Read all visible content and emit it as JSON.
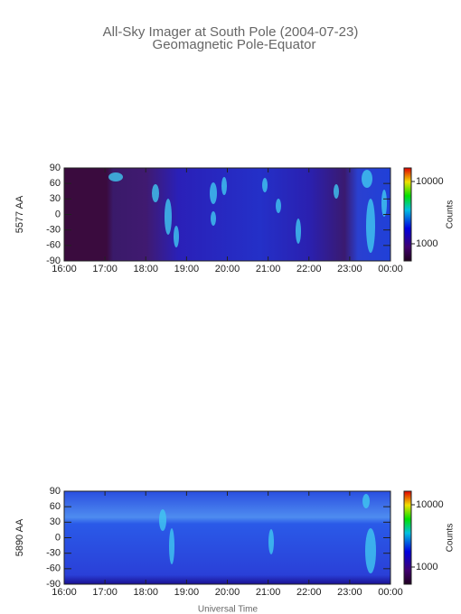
{
  "title": "All-Sky Imager at South Pole (2004-07-23)",
  "subtitle": "Geomagnetic Pole-Equator",
  "xlabel": "Universal Time",
  "chart_data": [
    {
      "type": "heatmap",
      "ylabel": "5577 AA",
      "xlim": [
        16,
        24
      ],
      "xticks": [
        {
          "value": 16,
          "label": "16:00"
        },
        {
          "value": 17,
          "label": "17:00"
        },
        {
          "value": 18,
          "label": "18:00"
        },
        {
          "value": 19,
          "label": "19:00"
        },
        {
          "value": 20,
          "label": "20:00"
        },
        {
          "value": 21,
          "label": "21:00"
        },
        {
          "value": 22,
          "label": "22:00"
        },
        {
          "value": 23,
          "label": "23:00"
        },
        {
          "value": 24,
          "label": "00:00"
        }
      ],
      "ylim": [
        -90,
        90
      ],
      "yticks": [
        -90,
        -60,
        -30,
        0,
        30,
        60,
        90
      ],
      "colorbar_label": "Counts",
      "colorbar_log": true,
      "clim": [
        530,
        16500
      ],
      "colorbar_ticks": [
        1000,
        10000
      ]
    },
    {
      "type": "heatmap",
      "ylabel": "5890 AA",
      "xlim": [
        16,
        24
      ],
      "xticks": [
        {
          "value": 16,
          "label": "16:00"
        },
        {
          "value": 17,
          "label": "17:00"
        },
        {
          "value": 18,
          "label": "18:00"
        },
        {
          "value": 19,
          "label": "19:00"
        },
        {
          "value": 20,
          "label": "20:00"
        },
        {
          "value": 21,
          "label": "21:00"
        },
        {
          "value": 22,
          "label": "22:00"
        },
        {
          "value": 23,
          "label": "23:00"
        },
        {
          "value": 24,
          "label": "00:00"
        }
      ],
      "ylim": [
        -90,
        90
      ],
      "yticks": [
        -90,
        -60,
        -30,
        0,
        30,
        60,
        90
      ],
      "colorbar_label": "Counts",
      "colorbar_log": true,
      "clim": [
        530,
        16500
      ],
      "colorbar_ticks": [
        1000,
        10000
      ]
    }
  ]
}
